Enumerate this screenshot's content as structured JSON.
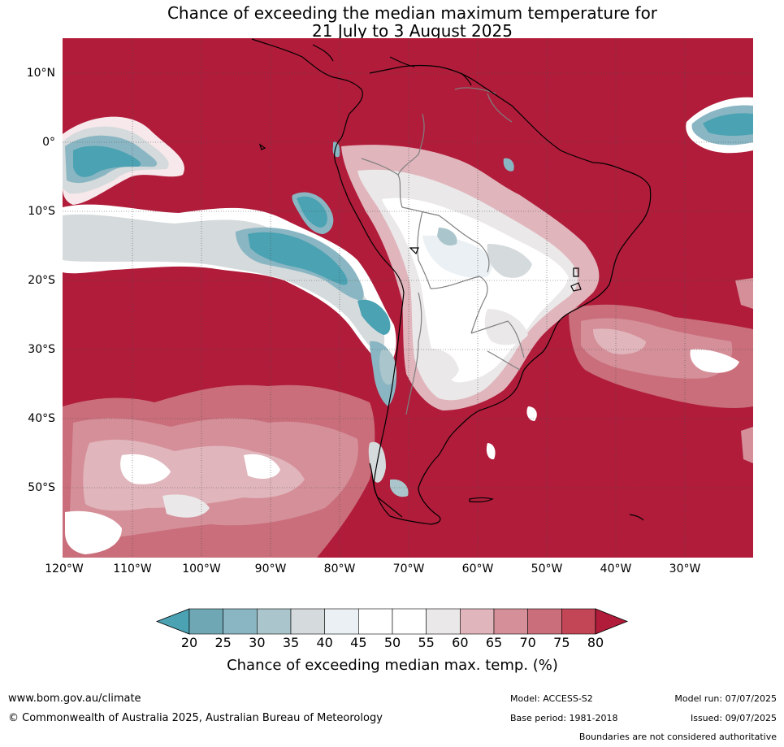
{
  "title": {
    "line1": "Chance of exceeding the median maximum temperature for",
    "line2": "21 July to 3 August 2025"
  },
  "axes": {
    "lat_ticks": [
      "10°N",
      "0°",
      "10°S",
      "20°S",
      "30°S",
      "40°S",
      "50°S"
    ],
    "lon_ticks": [
      "120°W",
      "110°W",
      "100°W",
      "90°W",
      "80°W",
      "70°W",
      "60°W",
      "50°W",
      "40°W",
      "30°W"
    ]
  },
  "colorbar": {
    "labels": [
      "20",
      "25",
      "30",
      "35",
      "40",
      "45",
      "50",
      "55",
      "60",
      "65",
      "70",
      "75",
      "80"
    ],
    "colors": [
      "#4aa2b2",
      "#6fa8b4",
      "#8ab6c3",
      "#aac5cb",
      "#d5dadc",
      "#eaf0f3",
      "#ffffff",
      "#ffffff",
      "#eae8e9",
      "#e0b5bc",
      "#d58f99",
      "#c96e7a",
      "#c24656",
      "#b01c3a"
    ],
    "title": "Chance of exceeding median max. temp. (%)"
  },
  "footer": {
    "url": "www.bom.gov.au/climate",
    "copyright": "© Commonwealth of Australia 2025, Australian Bureau of Meteorology",
    "model": "Model: ACCESS-S2",
    "base_period": "Base period: 1981-2018",
    "model_run": "Model run: 07/07/2025",
    "issued": "Issued: 09/07/2025",
    "boundaries_note": "Boundaries are not considered authoritative"
  },
  "map_colors": {
    "background": "#b01c3a",
    "land_outline": "#000000",
    "border": "#808080"
  }
}
